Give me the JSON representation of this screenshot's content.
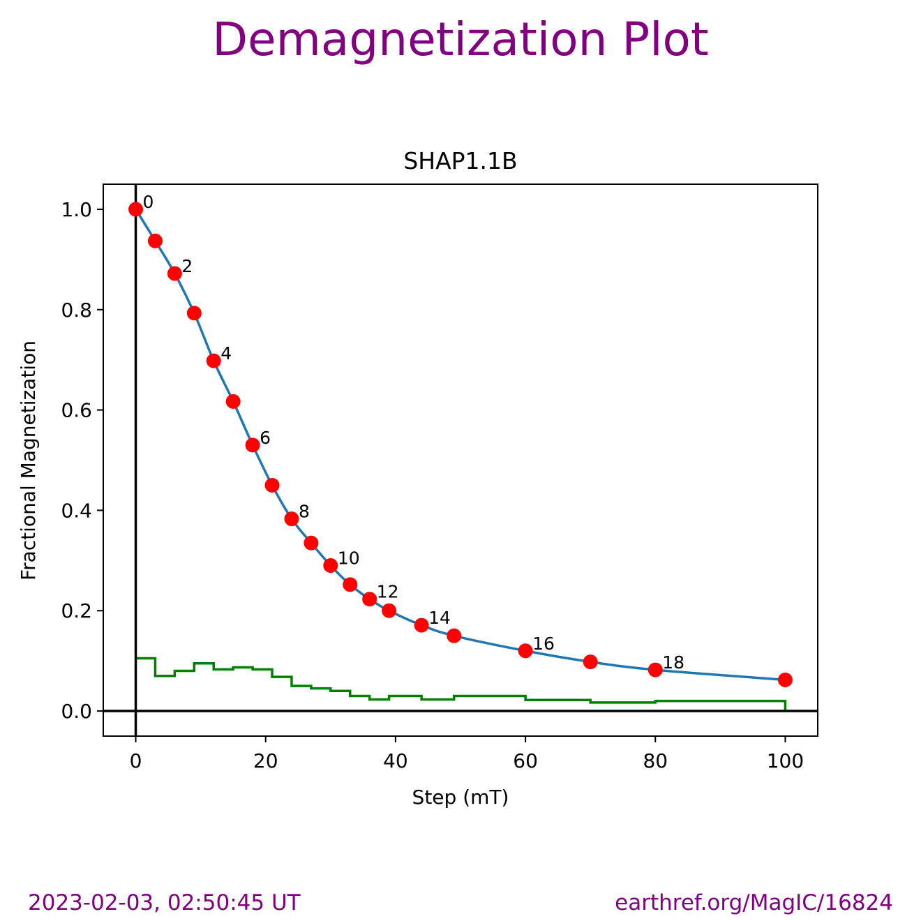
{
  "header": {
    "title": "Demagnetization Plot"
  },
  "footer": {
    "timestamp": "2023-02-03, 02:50:45 UT",
    "source": "earthref.org/MagIC/16824"
  },
  "colors": {
    "title": "#800080",
    "curve": "#1f77b4",
    "points": "#ff0000",
    "step_line": "#008000",
    "axes": "#000000"
  },
  "chart_data": {
    "type": "line",
    "title": "SHAP1.1B",
    "xlabel": "Step (mT)",
    "ylabel": "Fractional Magnetization",
    "xlim": [
      -5,
      105
    ],
    "ylim": [
      -0.05,
      1.05
    ],
    "xticks": [
      "0",
      "20",
      "40",
      "60",
      "80",
      "100"
    ],
    "yticks": [
      "0.0",
      "0.2",
      "0.4",
      "0.6",
      "0.8",
      "1.0"
    ],
    "series": [
      {
        "type": "line+points",
        "x": [
          0,
          3,
          6,
          9,
          12,
          15,
          18,
          21,
          24,
          27,
          30,
          33,
          36,
          39,
          44,
          49,
          60,
          70,
          80,
          100
        ],
        "y": [
          1.0,
          0.937,
          0.872,
          0.793,
          0.698,
          0.617,
          0.53,
          0.45,
          0.383,
          0.335,
          0.29,
          0.252,
          0.223,
          0.2,
          0.171,
          0.15,
          0.12,
          0.098,
          0.082,
          0.062
        ]
      },
      {
        "type": "step",
        "x": [
          0,
          3,
          6,
          9,
          12,
          15,
          18,
          21,
          24,
          27,
          30,
          33,
          36,
          39,
          44,
          49,
          60,
          70,
          80,
          100
        ],
        "y": [
          0.105,
          0.07,
          0.08,
          0.095,
          0.083,
          0.087,
          0.083,
          0.068,
          0.05,
          0.045,
          0.04,
          0.03,
          0.023,
          0.03,
          0.023,
          0.03,
          0.022,
          0.017,
          0.02,
          0.0
        ]
      }
    ],
    "point_labels": [
      {
        "index": 0,
        "text": "0"
      },
      {
        "index": 2,
        "text": "2"
      },
      {
        "index": 4,
        "text": "4"
      },
      {
        "index": 6,
        "text": "6"
      },
      {
        "index": 8,
        "text": "8"
      },
      {
        "index": 10,
        "text": "10"
      },
      {
        "index": 12,
        "text": "12"
      },
      {
        "index": 14,
        "text": "14"
      },
      {
        "index": 16,
        "text": "16"
      },
      {
        "index": 18,
        "text": "18"
      }
    ],
    "reference_lines": {
      "x": 0,
      "y": 0
    },
    "grid": false,
    "legend": "none"
  }
}
